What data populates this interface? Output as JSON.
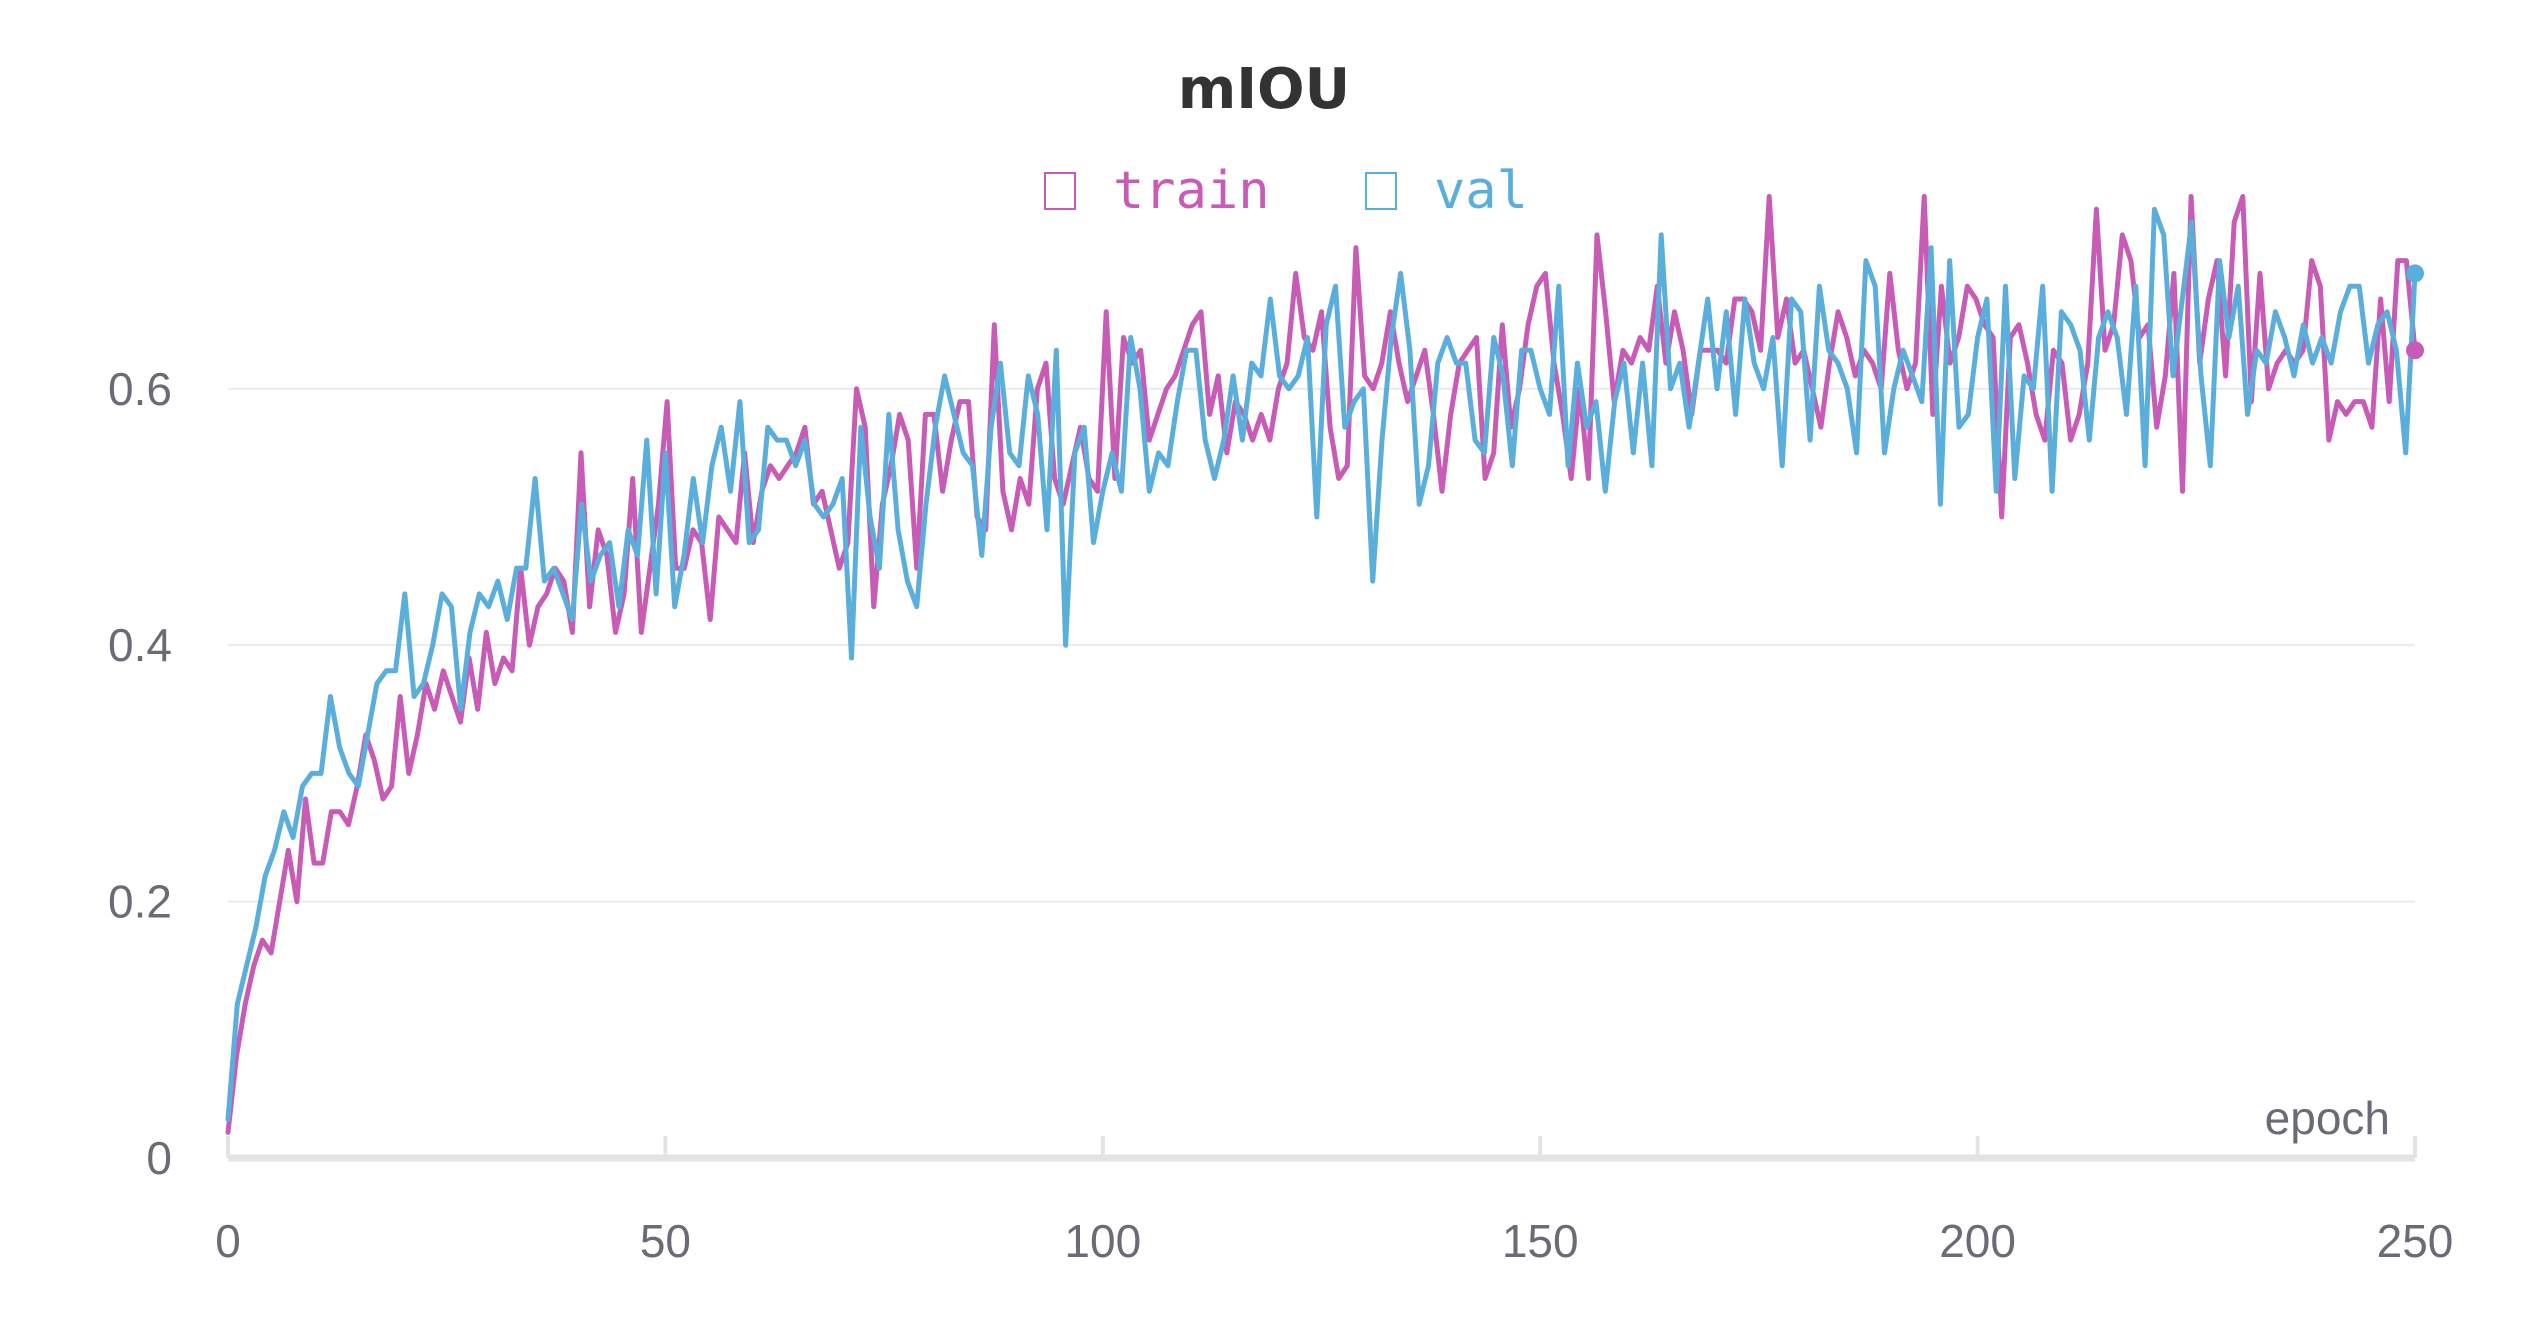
{
  "chart_data": {
    "type": "line",
    "title": "mIOU",
    "xlabel": "epoch",
    "ylabel": "",
    "xlim": [
      0,
      250
    ],
    "ylim": [
      0,
      0.78
    ],
    "xticks": [
      0,
      50,
      100,
      150,
      200,
      250
    ],
    "xtick_labels": [
      "0",
      "50",
      "100",
      "150",
      "200",
      "250"
    ],
    "yticks": [
      0,
      0.2,
      0.4,
      0.6
    ],
    "ytick_labels": [
      "0",
      "0.2",
      "0.4",
      "0.6"
    ],
    "grid": true,
    "legend_position": "top-center",
    "series": [
      {
        "name": "train",
        "color": "#c75bb6",
        "values": [
          0.02,
          0.08,
          0.12,
          0.15,
          0.17,
          0.16,
          0.2,
          0.24,
          0.2,
          0.28,
          0.23,
          0.23,
          0.27,
          0.27,
          0.26,
          0.29,
          0.33,
          0.31,
          0.28,
          0.29,
          0.36,
          0.3,
          0.33,
          0.37,
          0.35,
          0.38,
          0.36,
          0.34,
          0.39,
          0.35,
          0.41,
          0.37,
          0.39,
          0.38,
          0.46,
          0.4,
          0.43,
          0.44,
          0.46,
          0.45,
          0.41,
          0.55,
          0.43,
          0.49,
          0.47,
          0.41,
          0.44,
          0.53,
          0.41,
          0.46,
          0.51,
          0.59,
          0.46,
          0.46,
          0.49,
          0.48,
          0.42,
          0.5,
          0.49,
          0.48,
          0.55,
          0.48,
          0.52,
          0.54,
          0.53,
          0.54,
          0.55,
          0.57,
          0.51,
          0.52,
          0.49,
          0.46,
          0.48,
          0.6,
          0.57,
          0.43,
          0.51,
          0.54,
          0.58,
          0.56,
          0.46,
          0.58,
          0.58,
          0.52,
          0.56,
          0.59,
          0.59,
          0.5,
          0.49,
          0.65,
          0.52,
          0.49,
          0.53,
          0.51,
          0.6,
          0.62,
          0.53,
          0.51,
          0.54,
          0.57,
          0.53,
          0.52,
          0.66,
          0.53,
          0.64,
          0.62,
          0.63,
          0.56,
          0.58,
          0.6,
          0.61,
          0.63,
          0.65,
          0.66,
          0.58,
          0.61,
          0.55,
          0.59,
          0.58,
          0.56,
          0.58,
          0.56,
          0.6,
          0.62,
          0.69,
          0.64,
          0.63,
          0.66,
          0.57,
          0.53,
          0.54,
          0.71,
          0.61,
          0.6,
          0.62,
          0.66,
          0.62,
          0.59,
          0.61,
          0.63,
          0.58,
          0.52,
          0.58,
          0.62,
          0.63,
          0.64,
          0.53,
          0.55,
          0.65,
          0.57,
          0.6,
          0.65,
          0.68,
          0.69,
          0.62,
          0.58,
          0.53,
          0.6,
          0.53,
          0.72,
          0.66,
          0.59,
          0.63,
          0.62,
          0.64,
          0.63,
          0.68,
          0.62,
          0.66,
          0.63,
          0.58,
          0.63,
          0.63,
          0.63,
          0.62,
          0.67,
          0.67,
          0.66,
          0.63,
          0.75,
          0.64,
          0.67,
          0.62,
          0.63,
          0.6,
          0.57,
          0.62,
          0.66,
          0.64,
          0.61,
          0.63,
          0.62,
          0.6,
          0.69,
          0.63,
          0.6,
          0.62,
          0.75,
          0.58,
          0.68,
          0.62,
          0.64,
          0.68,
          0.67,
          0.65,
          0.64,
          0.5,
          0.64,
          0.65,
          0.62,
          0.58,
          0.56,
          0.63,
          0.62,
          0.56,
          0.58,
          0.62,
          0.74,
          0.63,
          0.65,
          0.72,
          0.7,
          0.64,
          0.65,
          0.57,
          0.61,
          0.69,
          0.52,
          0.75,
          0.62,
          0.67,
          0.7,
          0.61,
          0.73,
          0.75,
          0.59,
          0.69,
          0.6,
          0.62,
          0.63,
          0.62,
          0.63,
          0.7,
          0.68,
          0.56,
          0.59,
          0.58,
          0.59,
          0.59,
          0.57,
          0.67,
          0.59,
          0.7,
          0.7,
          0.63
        ]
      },
      {
        "name": "val",
        "color": "#5aaedb",
        "values": [
          0.03,
          0.12,
          0.15,
          0.18,
          0.22,
          0.24,
          0.27,
          0.25,
          0.29,
          0.3,
          0.3,
          0.36,
          0.32,
          0.3,
          0.29,
          0.33,
          0.37,
          0.38,
          0.38,
          0.44,
          0.36,
          0.37,
          0.4,
          0.44,
          0.43,
          0.35,
          0.41,
          0.44,
          0.43,
          0.45,
          0.42,
          0.46,
          0.46,
          0.53,
          0.45,
          0.46,
          0.44,
          0.42,
          0.51,
          0.45,
          0.47,
          0.48,
          0.43,
          0.49,
          0.47,
          0.56,
          0.44,
          0.55,
          0.43,
          0.47,
          0.53,
          0.48,
          0.54,
          0.57,
          0.52,
          0.59,
          0.48,
          0.49,
          0.57,
          0.56,
          0.56,
          0.54,
          0.56,
          0.51,
          0.5,
          0.51,
          0.53,
          0.39,
          0.57,
          0.5,
          0.46,
          0.58,
          0.49,
          0.45,
          0.43,
          0.51,
          0.57,
          0.61,
          0.58,
          0.55,
          0.54,
          0.47,
          0.57,
          0.62,
          0.55,
          0.54,
          0.61,
          0.58,
          0.49,
          0.63,
          0.4,
          0.55,
          0.57,
          0.48,
          0.52,
          0.55,
          0.52,
          0.64,
          0.6,
          0.52,
          0.55,
          0.54,
          0.59,
          0.63,
          0.63,
          0.56,
          0.53,
          0.56,
          0.61,
          0.56,
          0.62,
          0.61,
          0.67,
          0.61,
          0.6,
          0.61,
          0.64,
          0.5,
          0.65,
          0.68,
          0.57,
          0.59,
          0.6,
          0.45,
          0.56,
          0.64,
          0.69,
          0.63,
          0.51,
          0.54,
          0.62,
          0.64,
          0.62,
          0.62,
          0.56,
          0.55,
          0.64,
          0.61,
          0.54,
          0.63,
          0.63,
          0.6,
          0.58,
          0.68,
          0.54,
          0.62,
          0.57,
          0.59,
          0.52,
          0.59,
          0.62,
          0.55,
          0.62,
          0.54,
          0.72,
          0.6,
          0.62,
          0.57,
          0.62,
          0.67,
          0.6,
          0.66,
          0.58,
          0.67,
          0.62,
          0.6,
          0.64,
          0.54,
          0.67,
          0.66,
          0.56,
          0.68,
          0.63,
          0.62,
          0.6,
          0.55,
          0.7,
          0.68,
          0.55,
          0.6,
          0.63,
          0.61,
          0.59,
          0.71,
          0.51,
          0.7,
          0.57,
          0.58,
          0.64,
          0.67,
          0.52,
          0.68,
          0.53,
          0.61,
          0.6,
          0.68,
          0.52,
          0.66,
          0.65,
          0.63,
          0.56,
          0.64,
          0.66,
          0.64,
          0.58,
          0.68,
          0.54,
          0.74,
          0.72,
          0.61,
          0.67,
          0.73,
          0.61,
          0.54,
          0.7,
          0.64,
          0.68,
          0.58,
          0.63,
          0.62,
          0.66,
          0.64,
          0.61,
          0.65,
          0.62,
          0.64,
          0.62,
          0.66,
          0.68,
          0.68,
          0.62,
          0.65,
          0.66,
          0.63,
          0.55,
          0.69
        ]
      }
    ]
  }
}
